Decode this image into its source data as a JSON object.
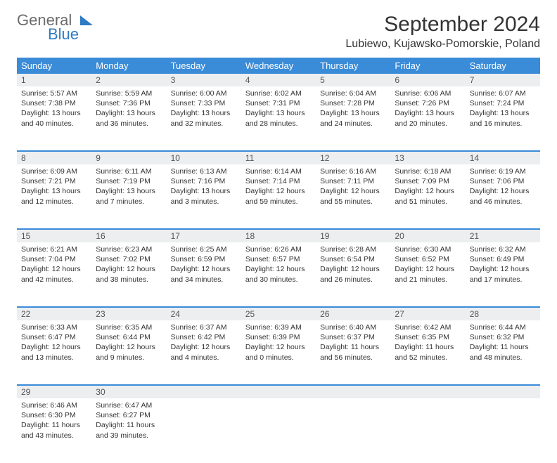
{
  "logo": {
    "word1": "General",
    "word2": "Blue"
  },
  "header": {
    "title": "September 2024",
    "location": "Lubiewo, Kujawsko-Pomorskie, Poland"
  },
  "colors": {
    "header_bg": "#3a8bd8",
    "header_text": "#ffffff",
    "daynum_bg": "#eceef0",
    "border": "#3a8bd8",
    "body_text": "#333333",
    "logo_gray": "#6b6b6b",
    "logo_blue": "#2f7bc4",
    "page_bg": "#ffffff"
  },
  "columns": [
    "Sunday",
    "Monday",
    "Tuesday",
    "Wednesday",
    "Thursday",
    "Friday",
    "Saturday"
  ],
  "days": [
    {
      "n": "1",
      "sr": "5:57 AM",
      "ss": "7:38 PM",
      "dl": "13 hours and 40 minutes."
    },
    {
      "n": "2",
      "sr": "5:59 AM",
      "ss": "7:36 PM",
      "dl": "13 hours and 36 minutes."
    },
    {
      "n": "3",
      "sr": "6:00 AM",
      "ss": "7:33 PM",
      "dl": "13 hours and 32 minutes."
    },
    {
      "n": "4",
      "sr": "6:02 AM",
      "ss": "7:31 PM",
      "dl": "13 hours and 28 minutes."
    },
    {
      "n": "5",
      "sr": "6:04 AM",
      "ss": "7:28 PM",
      "dl": "13 hours and 24 minutes."
    },
    {
      "n": "6",
      "sr": "6:06 AM",
      "ss": "7:26 PM",
      "dl": "13 hours and 20 minutes."
    },
    {
      "n": "7",
      "sr": "6:07 AM",
      "ss": "7:24 PM",
      "dl": "13 hours and 16 minutes."
    },
    {
      "n": "8",
      "sr": "6:09 AM",
      "ss": "7:21 PM",
      "dl": "13 hours and 12 minutes."
    },
    {
      "n": "9",
      "sr": "6:11 AM",
      "ss": "7:19 PM",
      "dl": "13 hours and 7 minutes."
    },
    {
      "n": "10",
      "sr": "6:13 AM",
      "ss": "7:16 PM",
      "dl": "13 hours and 3 minutes."
    },
    {
      "n": "11",
      "sr": "6:14 AM",
      "ss": "7:14 PM",
      "dl": "12 hours and 59 minutes."
    },
    {
      "n": "12",
      "sr": "6:16 AM",
      "ss": "7:11 PM",
      "dl": "12 hours and 55 minutes."
    },
    {
      "n": "13",
      "sr": "6:18 AM",
      "ss": "7:09 PM",
      "dl": "12 hours and 51 minutes."
    },
    {
      "n": "14",
      "sr": "6:19 AM",
      "ss": "7:06 PM",
      "dl": "12 hours and 46 minutes."
    },
    {
      "n": "15",
      "sr": "6:21 AM",
      "ss": "7:04 PM",
      "dl": "12 hours and 42 minutes."
    },
    {
      "n": "16",
      "sr": "6:23 AM",
      "ss": "7:02 PM",
      "dl": "12 hours and 38 minutes."
    },
    {
      "n": "17",
      "sr": "6:25 AM",
      "ss": "6:59 PM",
      "dl": "12 hours and 34 minutes."
    },
    {
      "n": "18",
      "sr": "6:26 AM",
      "ss": "6:57 PM",
      "dl": "12 hours and 30 minutes."
    },
    {
      "n": "19",
      "sr": "6:28 AM",
      "ss": "6:54 PM",
      "dl": "12 hours and 26 minutes."
    },
    {
      "n": "20",
      "sr": "6:30 AM",
      "ss": "6:52 PM",
      "dl": "12 hours and 21 minutes."
    },
    {
      "n": "21",
      "sr": "6:32 AM",
      "ss": "6:49 PM",
      "dl": "12 hours and 17 minutes."
    },
    {
      "n": "22",
      "sr": "6:33 AM",
      "ss": "6:47 PM",
      "dl": "12 hours and 13 minutes."
    },
    {
      "n": "23",
      "sr": "6:35 AM",
      "ss": "6:44 PM",
      "dl": "12 hours and 9 minutes."
    },
    {
      "n": "24",
      "sr": "6:37 AM",
      "ss": "6:42 PM",
      "dl": "12 hours and 4 minutes."
    },
    {
      "n": "25",
      "sr": "6:39 AM",
      "ss": "6:39 PM",
      "dl": "12 hours and 0 minutes."
    },
    {
      "n": "26",
      "sr": "6:40 AM",
      "ss": "6:37 PM",
      "dl": "11 hours and 56 minutes."
    },
    {
      "n": "27",
      "sr": "6:42 AM",
      "ss": "6:35 PM",
      "dl": "11 hours and 52 minutes."
    },
    {
      "n": "28",
      "sr": "6:44 AM",
      "ss": "6:32 PM",
      "dl": "11 hours and 48 minutes."
    },
    {
      "n": "29",
      "sr": "6:46 AM",
      "ss": "6:30 PM",
      "dl": "11 hours and 43 minutes."
    },
    {
      "n": "30",
      "sr": "6:47 AM",
      "ss": "6:27 PM",
      "dl": "11 hours and 39 minutes."
    }
  ],
  "labels": {
    "sunrise": "Sunrise:",
    "sunset": "Sunset:",
    "daylight": "Daylight:"
  },
  "layout": {
    "first_weekday_index": 0,
    "days_in_month": 30,
    "cols": 7
  }
}
